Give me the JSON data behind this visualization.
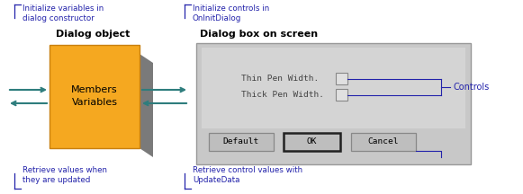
{
  "fig_width": 5.81,
  "fig_height": 2.16,
  "bg_color": "#ffffff",
  "teal": "#2e7d7d",
  "blue_text": "#2222aa",
  "orange_box": "#f5a820",
  "orange_edge": "#c88010",
  "gray_shadow": "#7a7a7a",
  "gray_dialog": "#c8c8c8",
  "gray_btn": "#bebebe",
  "black": "#000000",
  "label_init_vars": "Initialize variables in\ndialog constructor",
  "label_init_controls": "Initialize controls in\nOnInitDialog",
  "label_dialog_obj": "Dialog object",
  "label_dialog_box": "Dialog box on screen",
  "label_members": "Members\nVariables",
  "label_retrieve_vals": "Retrieve values when\nthey are updated",
  "label_retrieve_ctrl": "Retrieve control values with\nUpdateData",
  "label_controls": "Controls",
  "label_thin": "Thin Pen Width.",
  "label_thick": "Thick Pen Width.",
  "label_default": "Default",
  "label_ok": "OK",
  "label_cancel": "Cancel"
}
